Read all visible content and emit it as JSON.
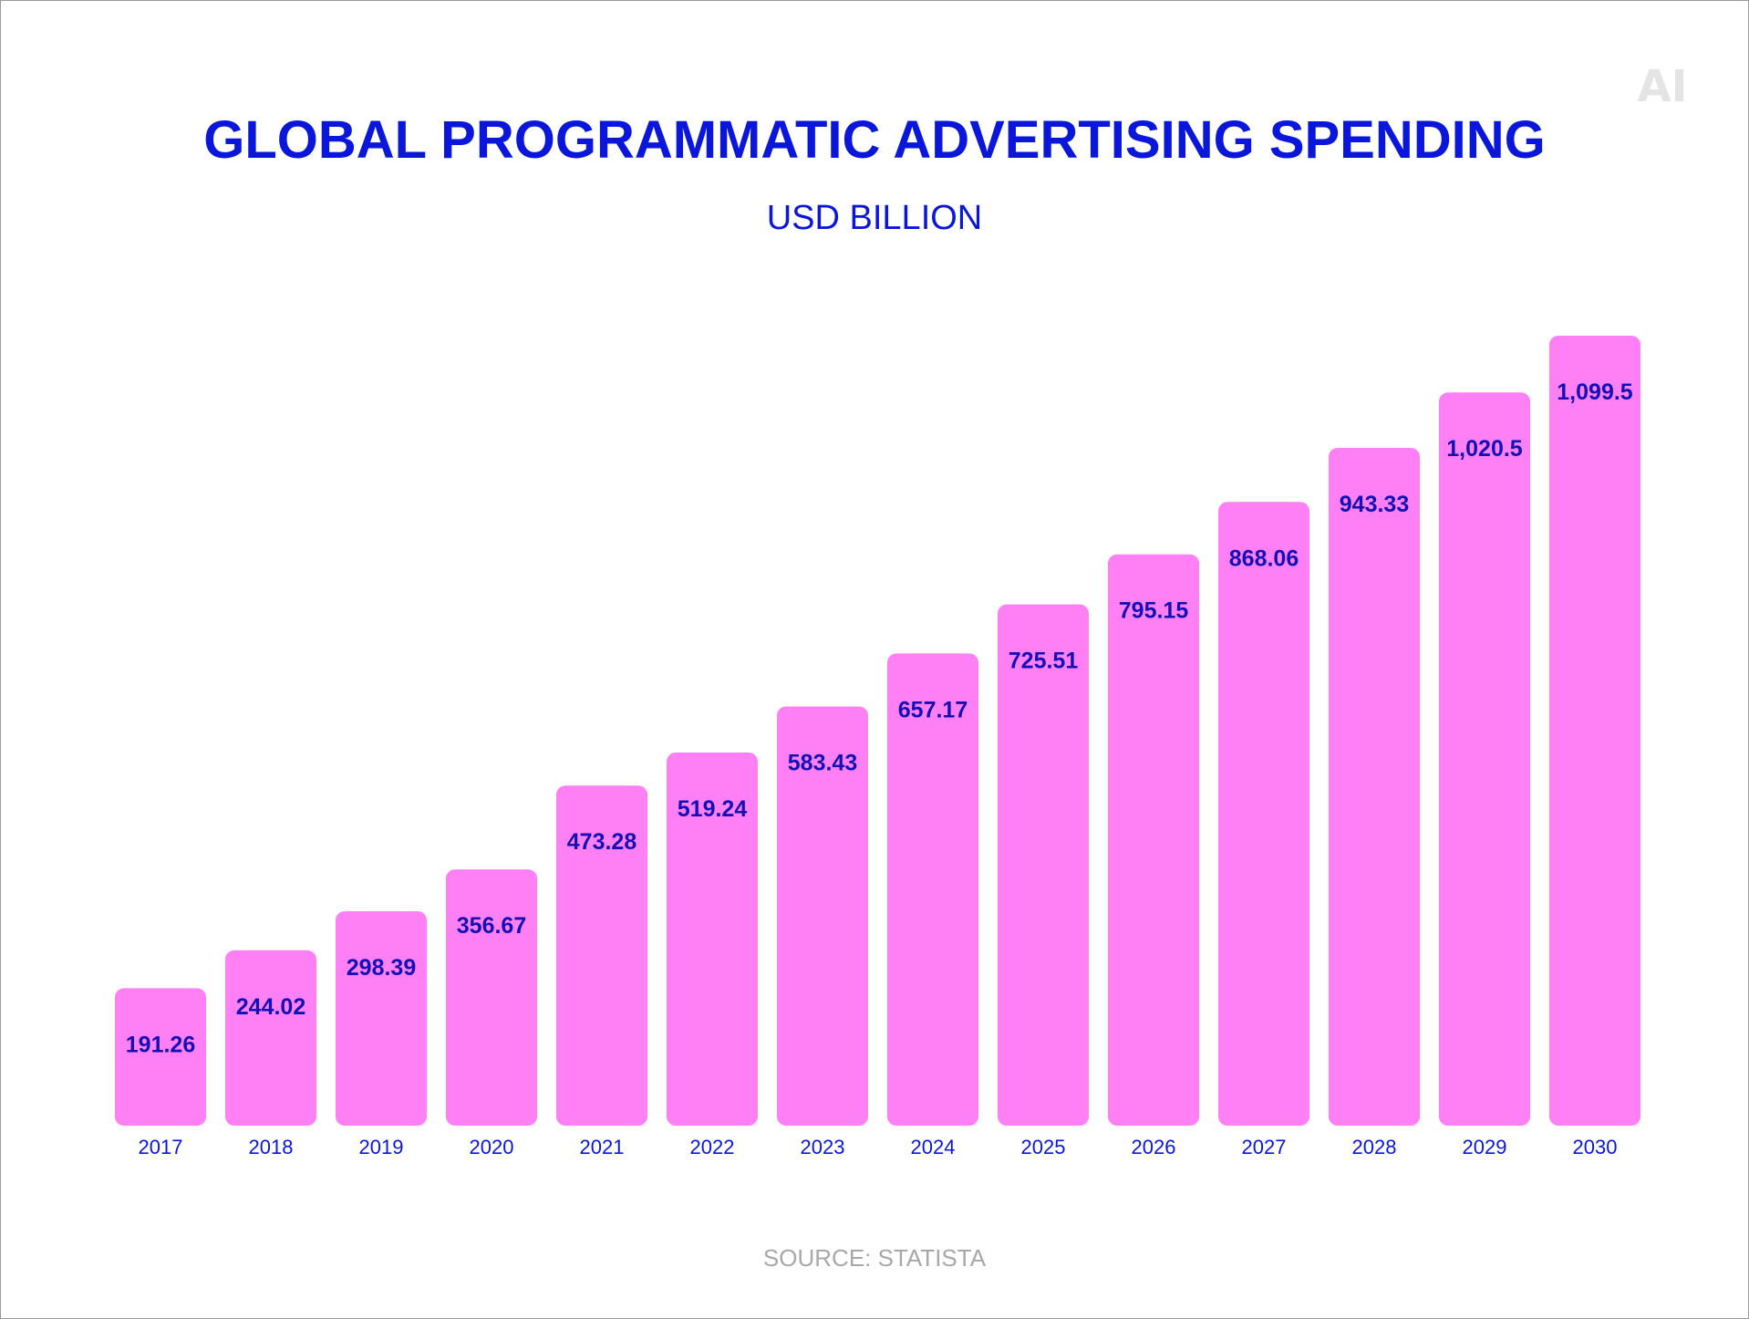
{
  "logo_text": "AI",
  "source_text": "SOURCE: STATISTA",
  "colors": {
    "bar": "#ff80f5",
    "primary": "#0a16d9",
    "source": "#a8a8a8",
    "logo": "#e4e4e4",
    "label": "#1410b8"
  },
  "chart_data": {
    "type": "bar",
    "title": "GLOBAL PROGRAMMATIC ADVERTISING SPENDING",
    "subtitle": "USD BILLION",
    "xlabel": "",
    "ylabel": "",
    "categories": [
      "2017",
      "2018",
      "2019",
      "2020",
      "2021",
      "2022",
      "2023",
      "2024",
      "2025",
      "2026",
      "2027",
      "2028",
      "2029",
      "2030"
    ],
    "values": [
      191.26,
      244.02,
      298.39,
      356.67,
      473.28,
      519.24,
      583.43,
      657.17,
      725.51,
      795.15,
      868.06,
      943.33,
      1020.5,
      1099.5
    ],
    "value_labels": [
      "191.26",
      "244.02",
      "298.39",
      "356.67",
      "473.28",
      "519.24",
      "583.43",
      "657.17",
      "725.51",
      "795.15",
      "868.06",
      "943.33",
      "1,020.5",
      "1,099.5"
    ],
    "ylim": [
      0,
      1099.5
    ],
    "grid": false,
    "legend": "none"
  }
}
